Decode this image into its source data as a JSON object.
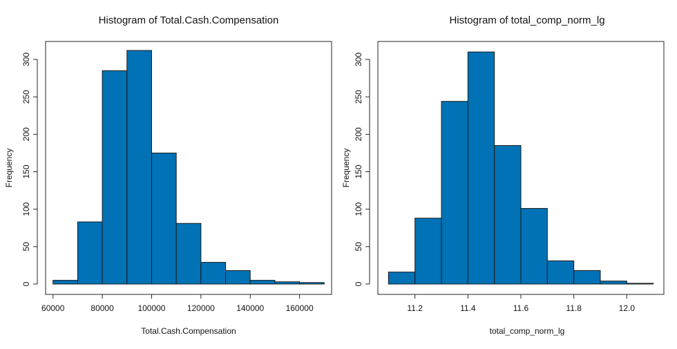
{
  "chart_data": [
    {
      "type": "bar",
      "title": "Histogram of Total.Cash.Compensation",
      "xlabel": "Total.Cash.Compensation",
      "ylabel": "Frequency",
      "bin_edges": [
        60000,
        70000,
        80000,
        90000,
        100000,
        110000,
        120000,
        130000,
        140000,
        150000,
        160000,
        170000
      ],
      "values": [
        5,
        83,
        285,
        312,
        175,
        81,
        29,
        18,
        5,
        3,
        2
      ],
      "xlim": [
        57000,
        173000
      ],
      "ylim": [
        0,
        322
      ],
      "x_ticks": [
        60000,
        80000,
        100000,
        120000,
        140000,
        160000
      ],
      "x_tick_labels": [
        "60000",
        "80000",
        "100000",
        "120000",
        "140000",
        "160000"
      ],
      "y_ticks": [
        0,
        50,
        100,
        150,
        200,
        250,
        300
      ],
      "y_tick_labels": [
        "0",
        "50",
        "100",
        "150",
        "200",
        "250",
        "300"
      ],
      "bar_color": "#0072b5",
      "grid": false
    },
    {
      "type": "bar",
      "title": "Histogram of total_comp_norm_lg",
      "xlabel": "total_comp_norm_lg",
      "ylabel": "Frequency",
      "bin_edges": [
        11.1,
        11.2,
        11.3,
        11.4,
        11.5,
        11.6,
        11.7,
        11.8,
        11.9,
        12.0,
        12.1
      ],
      "values": [
        16,
        88,
        244,
        310,
        185,
        101,
        31,
        18,
        4,
        1
      ],
      "xlim": [
        11.06,
        12.14
      ],
      "ylim": [
        0,
        322
      ],
      "x_ticks": [
        11.2,
        11.4,
        11.6,
        11.8,
        12.0
      ],
      "x_tick_labels": [
        "11.2",
        "11.4",
        "11.6",
        "11.8",
        "12.0"
      ],
      "y_ticks": [
        0,
        50,
        100,
        150,
        200,
        250,
        300
      ],
      "y_tick_labels": [
        "0",
        "50",
        "100",
        "150",
        "200",
        "250",
        "300"
      ],
      "bar_color": "#0072b5",
      "grid": false
    }
  ]
}
